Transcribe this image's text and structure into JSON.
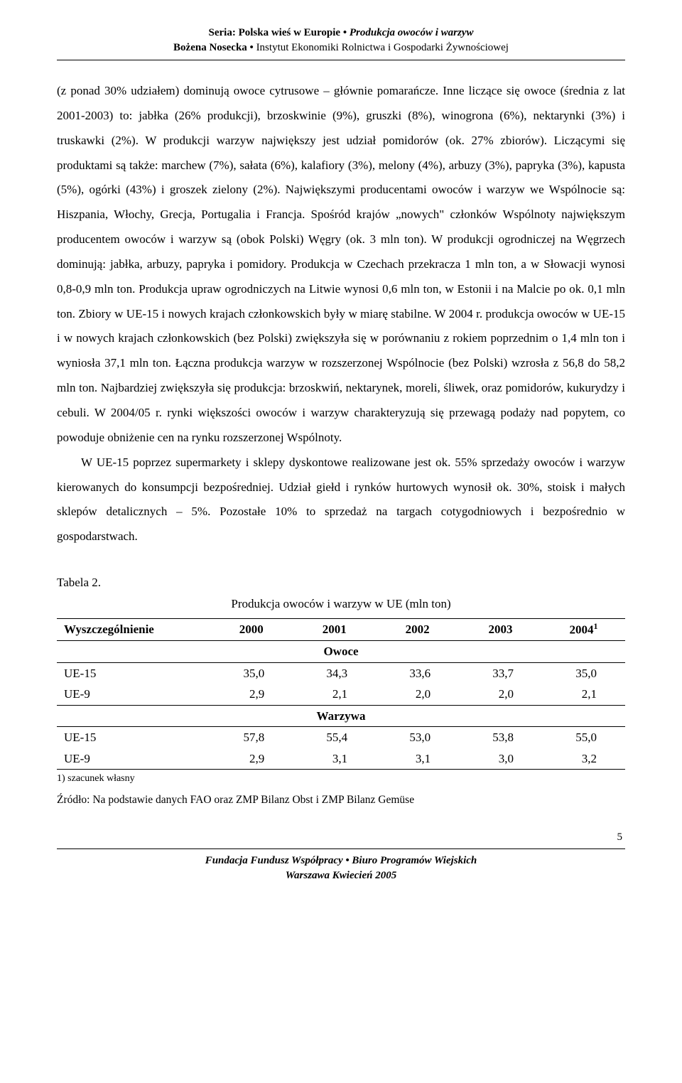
{
  "header": {
    "series_label": "Seria:",
    "series_name": "Polska wieś w Europie",
    "series_bullet": "•",
    "series_title": "Produkcja owoców i warzyw",
    "author": "Bożena Nosecka",
    "institute": "Instytut Ekonomiki Rolnictwa i Gospodarki Żywnościowej"
  },
  "paragraphs": {
    "p1": "(z ponad 30% udziałem) dominują owoce cytrusowe – głównie pomarańcze. Inne liczące się owoce (średnia z lat 2001-2003) to: jabłka (26% produkcji), brzoskwinie (9%), gruszki (8%), winogrona (6%), nektarynki (3%) i truskawki (2%). W produkcji warzyw największy jest udział pomidorów (ok. 27% zbiorów). Liczącymi się produktami są także: marchew (7%), sałata (6%), kalafiory (3%), melony (4%), arbuzy (3%), papryka (3%), kapusta (5%), ogórki (43%) i groszek zielony (2%). Największymi producentami owoców i warzyw we Wspólnocie są: Hiszpania, Włochy, Grecja, Portugalia i Francja. Spośród krajów „nowych\" członków Wspólnoty największym producentem owoców i warzyw są (obok Polski) Węgry (ok. 3 mln ton). W produkcji ogrodniczej na Węgrzech dominują: jabłka, arbuzy, papryka i pomidory. Produkcja w Czechach przekracza 1 mln ton, a w Słowacji wynosi 0,8-0,9 mln ton. Produkcja upraw ogrodniczych na Litwie wynosi 0,6 mln ton, w Estonii i na Malcie po ok. 0,1 mln ton. Zbiory w UE-15 i nowych krajach członkowskich były w miarę stabilne. W 2004 r. produkcja owoców w UE-15 i w nowych krajach członkowskich (bez Polski) zwiększyła się w porównaniu z rokiem poprzednim o 1,4 mln ton i wyniosła 37,1 mln ton. Łączna produkcja warzyw w rozszerzonej Wspólnocie (bez Polski) wzrosła z 56,8 do 58,2 mln ton. Najbardziej zwiększyła się produkcja: brzoskwiń, nektarynek, moreli, śliwek, oraz pomidorów, kukurydzy i cebuli. W 2004/05 r. rynki większości owoców i warzyw charakteryzują się przewagą podaży nad popytem, co powoduje obniżenie cen na rynku rozszerzonej Wspólnoty.",
    "p2": "W UE-15 poprzez supermarkety i sklepy dyskontowe realizowane jest ok. 55% sprzedaży owoców i warzyw kierowanych do konsumpcji bezpośredniej. Udział giełd i rynków hurtowych wynosił ok. 30%, stoisk i małych sklepów detalicznych – 5%. Pozostałe 10% to sprzedaż na targach cotygodniowych i bezpośrednio w gospodarstwach."
  },
  "table": {
    "label": "Tabela 2.",
    "title": "Produkcja owoców i warzyw w UE (mln ton)",
    "columns": [
      "Wyszczególnienie",
      "2000",
      "2001",
      "2002",
      "2003",
      "2004"
    ],
    "col_sup": "1",
    "sections": [
      {
        "name": "Owoce",
        "rows": [
          {
            "label": "UE-15",
            "values": [
              "35,0",
              "34,3",
              "33,6",
              "33,7",
              "35,0"
            ]
          },
          {
            "label": "UE-9",
            "values": [
              "2,9",
              "2,1",
              "2,0",
              "2,0",
              "2,1"
            ]
          }
        ]
      },
      {
        "name": "Warzywa",
        "rows": [
          {
            "label": "UE-15",
            "values": [
              "57,8",
              "55,4",
              "53,0",
              "53,8",
              "55,0"
            ]
          },
          {
            "label": "UE-9",
            "values": [
              "2,9",
              "3,1",
              "3,1",
              "3,0",
              "3,2"
            ]
          }
        ]
      }
    ],
    "footnote": "1) szacunek własny",
    "source": "Źródło: Na podstawie danych FAO oraz ZMP Bilanz Obst i ZMP Bilanz Gemüse"
  },
  "page_number": "5",
  "footer": {
    "org": "Fundacja Fundusz Współpracy • Biuro Programów Wiejskich",
    "date": "Warszawa Kwiecień 2005"
  }
}
